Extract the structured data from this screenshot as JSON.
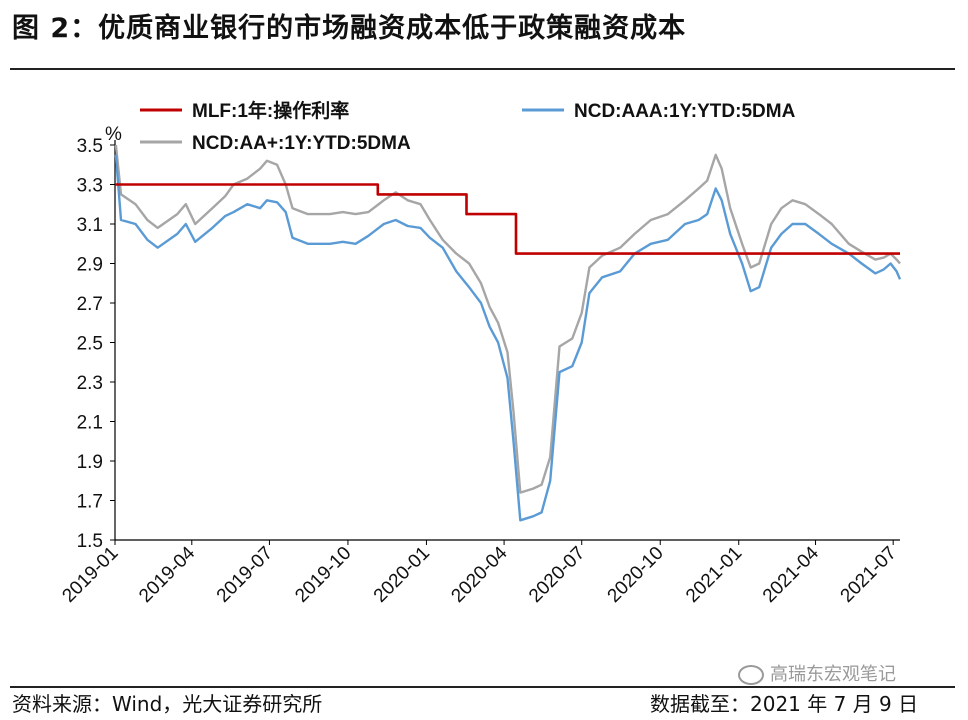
{
  "header": {
    "title": "图 2：优质商业银行的市场融资成本低于政策融资成本"
  },
  "footer": {
    "source": "资料来源：Wind，光大证券研究所",
    "as_of": "数据截至：2021 年 7 月 9 日",
    "watermark": "高瑞东宏观笔记"
  },
  "colors": {
    "mlf": "#c00000",
    "aaa": "#5b9bd5",
    "aa_plus": "#a6a6a6"
  },
  "chart_data": {
    "type": "line",
    "title": "",
    "ylabel": "%",
    "ylim": [
      1.5,
      3.5
    ],
    "yticks": [
      "3.5",
      "3.3",
      "3.1",
      "2.9",
      "2.7",
      "2.5",
      "2.3",
      "2.1",
      "1.9",
      "1.7",
      "1.5"
    ],
    "xticks": [
      "2019-01",
      "2019-04",
      "2019-07",
      "2019-10",
      "2020-01",
      "2020-04",
      "2020-07",
      "2020-10",
      "2021-01",
      "2021-04",
      "2021-07"
    ],
    "xrange": [
      "2019-01-01",
      "2021-07-09"
    ],
    "legend": [
      "MLF:1年:操作利率",
      "NCD:AAA:1Y:YTD:5DMA",
      "NCD:AA+:1Y:YTD:5DMA"
    ],
    "series": [
      {
        "name": "MLF:1年:操作利率",
        "step": true,
        "points": [
          [
            "2019-01-01",
            3.3
          ],
          [
            "2019-11-05",
            3.25
          ],
          [
            "2020-02-17",
            3.15
          ],
          [
            "2020-04-15",
            2.95
          ],
          [
            "2021-07-09",
            2.95
          ]
        ]
      },
      {
        "name": "NCD:AAA:1Y:YTD:5DMA",
        "points": [
          [
            "2019-01-02",
            3.45
          ],
          [
            "2019-01-08",
            3.12
          ],
          [
            "2019-01-25",
            3.1
          ],
          [
            "2019-02-08",
            3.02
          ],
          [
            "2019-02-20",
            2.98
          ],
          [
            "2019-03-15",
            3.05
          ],
          [
            "2019-03-25",
            3.1
          ],
          [
            "2019-04-05",
            3.01
          ],
          [
            "2019-04-25",
            3.08
          ],
          [
            "2019-05-10",
            3.14
          ],
          [
            "2019-05-20",
            3.16
          ],
          [
            "2019-06-05",
            3.2
          ],
          [
            "2019-06-20",
            3.18
          ],
          [
            "2019-06-28",
            3.22
          ],
          [
            "2019-07-10",
            3.21
          ],
          [
            "2019-07-20",
            3.16
          ],
          [
            "2019-07-28",
            3.03
          ],
          [
            "2019-08-15",
            3.0
          ],
          [
            "2019-09-10",
            3.0
          ],
          [
            "2019-09-25",
            3.01
          ],
          [
            "2019-10-10",
            3.0
          ],
          [
            "2019-10-25",
            3.04
          ],
          [
            "2019-11-12",
            3.1
          ],
          [
            "2019-11-26",
            3.12
          ],
          [
            "2019-12-10",
            3.09
          ],
          [
            "2019-12-25",
            3.08
          ],
          [
            "2020-01-05",
            3.03
          ],
          [
            "2020-01-20",
            2.98
          ],
          [
            "2020-02-05",
            2.86
          ],
          [
            "2020-02-20",
            2.78
          ],
          [
            "2020-03-05",
            2.7
          ],
          [
            "2020-03-15",
            2.58
          ],
          [
            "2020-03-25",
            2.5
          ],
          [
            "2020-04-05",
            2.32
          ],
          [
            "2020-04-12",
            2.0
          ],
          [
            "2020-04-20",
            1.6
          ],
          [
            "2020-05-05",
            1.62
          ],
          [
            "2020-05-15",
            1.64
          ],
          [
            "2020-05-25",
            1.8
          ],
          [
            "2020-06-05",
            2.35
          ],
          [
            "2020-06-20",
            2.38
          ],
          [
            "2020-07-01",
            2.5
          ],
          [
            "2020-07-10",
            2.75
          ],
          [
            "2020-07-25",
            2.83
          ],
          [
            "2020-08-15",
            2.86
          ],
          [
            "2020-09-01",
            2.95
          ],
          [
            "2020-09-20",
            3.0
          ],
          [
            "2020-10-10",
            3.02
          ],
          [
            "2020-10-30",
            3.1
          ],
          [
            "2020-11-15",
            3.12
          ],
          [
            "2020-11-25",
            3.15
          ],
          [
            "2020-12-05",
            3.28
          ],
          [
            "2020-12-12",
            3.22
          ],
          [
            "2020-12-22",
            3.05
          ],
          [
            "2021-01-05",
            2.9
          ],
          [
            "2021-01-15",
            2.76
          ],
          [
            "2021-01-25",
            2.78
          ],
          [
            "2021-02-08",
            2.98
          ],
          [
            "2021-02-20",
            3.05
          ],
          [
            "2021-03-05",
            3.1
          ],
          [
            "2021-03-20",
            3.1
          ],
          [
            "2021-04-05",
            3.05
          ],
          [
            "2021-04-20",
            3.0
          ],
          [
            "2021-05-10",
            2.95
          ],
          [
            "2021-05-25",
            2.9
          ],
          [
            "2021-06-10",
            2.85
          ],
          [
            "2021-06-20",
            2.87
          ],
          [
            "2021-06-28",
            2.9
          ],
          [
            "2021-07-05",
            2.86
          ],
          [
            "2021-07-09",
            2.82
          ]
        ]
      },
      {
        "name": "NCD:AA+:1Y:YTD:5DMA",
        "points": [
          [
            "2019-01-02",
            3.5
          ],
          [
            "2019-01-08",
            3.25
          ],
          [
            "2019-01-25",
            3.2
          ],
          [
            "2019-02-08",
            3.12
          ],
          [
            "2019-02-20",
            3.08
          ],
          [
            "2019-03-15",
            3.15
          ],
          [
            "2019-03-25",
            3.2
          ],
          [
            "2019-04-05",
            3.1
          ],
          [
            "2019-04-25",
            3.18
          ],
          [
            "2019-05-10",
            3.24
          ],
          [
            "2019-05-20",
            3.3
          ],
          [
            "2019-06-05",
            3.33
          ],
          [
            "2019-06-20",
            3.38
          ],
          [
            "2019-06-28",
            3.42
          ],
          [
            "2019-07-10",
            3.4
          ],
          [
            "2019-07-20",
            3.3
          ],
          [
            "2019-07-28",
            3.18
          ],
          [
            "2019-08-15",
            3.15
          ],
          [
            "2019-09-10",
            3.15
          ],
          [
            "2019-09-25",
            3.16
          ],
          [
            "2019-10-10",
            3.15
          ],
          [
            "2019-10-25",
            3.16
          ],
          [
            "2019-11-12",
            3.22
          ],
          [
            "2019-11-26",
            3.26
          ],
          [
            "2019-12-10",
            3.22
          ],
          [
            "2019-12-25",
            3.2
          ],
          [
            "2020-01-05",
            3.12
          ],
          [
            "2020-01-20",
            3.02
          ],
          [
            "2020-02-05",
            2.95
          ],
          [
            "2020-02-20",
            2.9
          ],
          [
            "2020-03-05",
            2.8
          ],
          [
            "2020-03-15",
            2.68
          ],
          [
            "2020-03-25",
            2.6
          ],
          [
            "2020-04-05",
            2.45
          ],
          [
            "2020-04-12",
            2.15
          ],
          [
            "2020-04-20",
            1.74
          ],
          [
            "2020-05-05",
            1.76
          ],
          [
            "2020-05-15",
            1.78
          ],
          [
            "2020-05-25",
            1.92
          ],
          [
            "2020-06-05",
            2.48
          ],
          [
            "2020-06-20",
            2.52
          ],
          [
            "2020-07-01",
            2.65
          ],
          [
            "2020-07-10",
            2.88
          ],
          [
            "2020-07-25",
            2.94
          ],
          [
            "2020-08-15",
            2.98
          ],
          [
            "2020-09-01",
            3.05
          ],
          [
            "2020-09-20",
            3.12
          ],
          [
            "2020-10-10",
            3.15
          ],
          [
            "2020-10-30",
            3.22
          ],
          [
            "2020-11-15",
            3.28
          ],
          [
            "2020-11-25",
            3.32
          ],
          [
            "2020-12-05",
            3.45
          ],
          [
            "2020-12-12",
            3.38
          ],
          [
            "2020-12-22",
            3.18
          ],
          [
            "2021-01-05",
            3.0
          ],
          [
            "2021-01-15",
            2.88
          ],
          [
            "2021-01-25",
            2.9
          ],
          [
            "2021-02-08",
            3.1
          ],
          [
            "2021-02-20",
            3.18
          ],
          [
            "2021-03-05",
            3.22
          ],
          [
            "2021-03-20",
            3.2
          ],
          [
            "2021-04-05",
            3.15
          ],
          [
            "2021-04-20",
            3.1
          ],
          [
            "2021-05-10",
            3.0
          ],
          [
            "2021-05-25",
            2.96
          ],
          [
            "2021-06-10",
            2.92
          ],
          [
            "2021-06-20",
            2.93
          ],
          [
            "2021-06-28",
            2.95
          ],
          [
            "2021-07-05",
            2.92
          ],
          [
            "2021-07-09",
            2.9
          ]
        ]
      }
    ]
  }
}
